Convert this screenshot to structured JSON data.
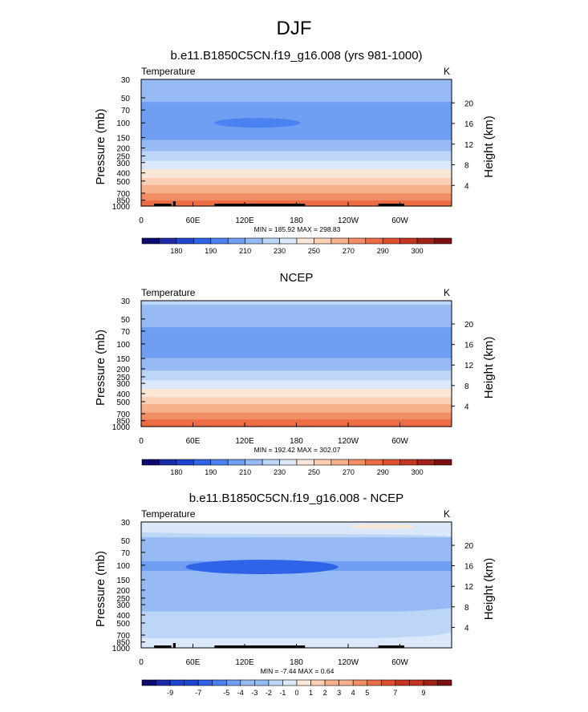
{
  "figure": {
    "title": "DJF"
  },
  "colors": {
    "model_palette": [
      "#0a0a70",
      "#1a2aa8",
      "#1f44d0",
      "#2f63e8",
      "#4a82f2",
      "#6f9ef2",
      "#96bbf4",
      "#bdd6f7",
      "#dbe8fa",
      "#fbe7d8",
      "#fbd0b5",
      "#f7b08c",
      "#f28e66",
      "#ec6d45",
      "#de5030",
      "#c53620",
      "#a2221a",
      "#7a1010"
    ],
    "diff_palette": [
      "#0a0a70",
      "#1a2aa8",
      "#1f44d0",
      "#2f63e8",
      "#4a82f2",
      "#6f9ef2",
      "#96bbf4",
      "#bdd6f7",
      "#dbe8fa",
      "#fbe7d8",
      "#fbd0b5",
      "#f7b08c",
      "#f28e66",
      "#ec6d45",
      "#de5030",
      "#c53620",
      "#a2221a",
      "#7a1010"
    ]
  },
  "chart_data": [
    {
      "type": "heatmap",
      "panel_key": "model",
      "title": "b.e11.B1850C5CN.f19_g16.008 (yrs 981-1000)",
      "left_label": "Temperature",
      "right_label": "K",
      "ylabel": "Pressure (mb)",
      "y2label": "Height (km)",
      "x_ticks": [
        "0",
        "60E",
        "120E",
        "180",
        "120W",
        "60W"
      ],
      "x_tick_lons": [
        0,
        60,
        120,
        180,
        240,
        300
      ],
      "xlim": [
        0,
        360
      ],
      "pressure_ticks": [
        30,
        50,
        70,
        100,
        150,
        200,
        250,
        300,
        400,
        500,
        700,
        850,
        1000
      ],
      "pressure_lim": [
        1000,
        30
      ],
      "height_ticks_km": [
        4,
        8,
        12,
        16,
        20
      ],
      "stats": "MIN = 185.92  MAX = 298.83",
      "min": 185.92,
      "max": 298.83,
      "profile_levels": [
        30,
        50,
        70,
        100,
        150,
        200,
        250,
        300,
        400,
        500,
        700,
        850,
        1000
      ],
      "profile_values": [
        220,
        212,
        206,
        203,
        208,
        217,
        224,
        231,
        244,
        254,
        270,
        280,
        288
      ],
      "cold_core": {
        "lon_range": [
          85,
          185
        ],
        "p_center": 100,
        "value": 193
      },
      "contour_levels": [
        175,
        180,
        185,
        190,
        200,
        210,
        220,
        230,
        240,
        250,
        260,
        270,
        280,
        290,
        295,
        300,
        305
      ],
      "colorbar_labels": [
        "180",
        "190",
        "210",
        "230",
        "250",
        "270",
        "290",
        "300"
      ],
      "topography_lons": [
        [
          15,
          35
        ],
        [
          37,
          40
        ],
        [
          85,
          190
        ],
        [
          275,
          305
        ]
      ]
    },
    {
      "type": "heatmap",
      "panel_key": "obs",
      "title": "NCEP",
      "left_label": "Temperature",
      "right_label": "K",
      "ylabel": "Pressure (mb)",
      "y2label": "Height (km)",
      "x_ticks": [
        "0",
        "60E",
        "120E",
        "180",
        "120W",
        "60W"
      ],
      "x_tick_lons": [
        0,
        60,
        120,
        180,
        240,
        300
      ],
      "xlim": [
        0,
        360
      ],
      "pressure_ticks": [
        30,
        50,
        70,
        100,
        150,
        200,
        250,
        300,
        400,
        500,
        700,
        850,
        1000
      ],
      "pressure_lim": [
        1000,
        30
      ],
      "height_ticks_km": [
        4,
        8,
        12,
        16,
        20
      ],
      "stats": "MIN = 192.42  MAX = 302.07",
      "min": 192.42,
      "max": 302.07,
      "profile_levels": [
        30,
        50,
        70,
        100,
        150,
        200,
        250,
        300,
        400,
        500,
        700,
        850,
        1000
      ],
      "profile_values": [
        222,
        214,
        208,
        205,
        210,
        219,
        226,
        233,
        246,
        257,
        272,
        282,
        291
      ],
      "contour_levels": [
        175,
        180,
        185,
        190,
        200,
        210,
        220,
        230,
        240,
        250,
        260,
        270,
        280,
        290,
        295,
        300,
        305
      ],
      "colorbar_labels": [
        "180",
        "190",
        "210",
        "230",
        "250",
        "270",
        "290",
        "300"
      ]
    },
    {
      "type": "heatmap",
      "panel_key": "diff",
      "title": "b.e11.B1850C5CN.f19_g16.008 - NCEP",
      "left_label": "Temperature",
      "right_label": "K",
      "ylabel": "Pressure (mb)",
      "y2label": "Height (km)",
      "x_ticks": [
        "0",
        "60E",
        "120E",
        "180",
        "120W",
        "60W"
      ],
      "x_tick_lons": [
        0,
        60,
        120,
        180,
        240,
        300
      ],
      "xlim": [
        0,
        360
      ],
      "pressure_ticks": [
        30,
        50,
        70,
        100,
        150,
        200,
        250,
        300,
        400,
        500,
        700,
        850,
        1000
      ],
      "pressure_lim": [
        1000,
        30
      ],
      "height_ticks_km": [
        4,
        8,
        12,
        16,
        20
      ],
      "stats": "MIN = -7.44  MAX =  0.64",
      "min": -7.44,
      "max": 0.64,
      "profile_levels": [
        30,
        50,
        70,
        100,
        150,
        200,
        250,
        300,
        400,
        500,
        700,
        850,
        1000
      ],
      "profile_values": [
        -0.8,
        -2.2,
        -3.4,
        -4.3,
        -3.5,
        -2.9,
        -2.5,
        -2.3,
        -1.8,
        -1.5,
        -1.2,
        -0.8,
        -0.4
      ],
      "contour_levels": [
        -11,
        -9,
        -8,
        -7,
        -6,
        -5,
        -4,
        -3,
        -2,
        -1,
        0,
        1,
        2,
        3,
        4,
        5,
        6,
        7,
        8,
        9,
        11
      ],
      "colorbar_labels": [
        "-9",
        "-7",
        "-5",
        "-4",
        "-3",
        "-2",
        "-1",
        "0",
        "1",
        "2",
        "3",
        "4",
        "5",
        "7",
        "9"
      ],
      "topography_lons": [
        [
          15,
          35
        ],
        [
          37,
          40
        ],
        [
          85,
          190
        ],
        [
          275,
          305
        ]
      ]
    }
  ]
}
